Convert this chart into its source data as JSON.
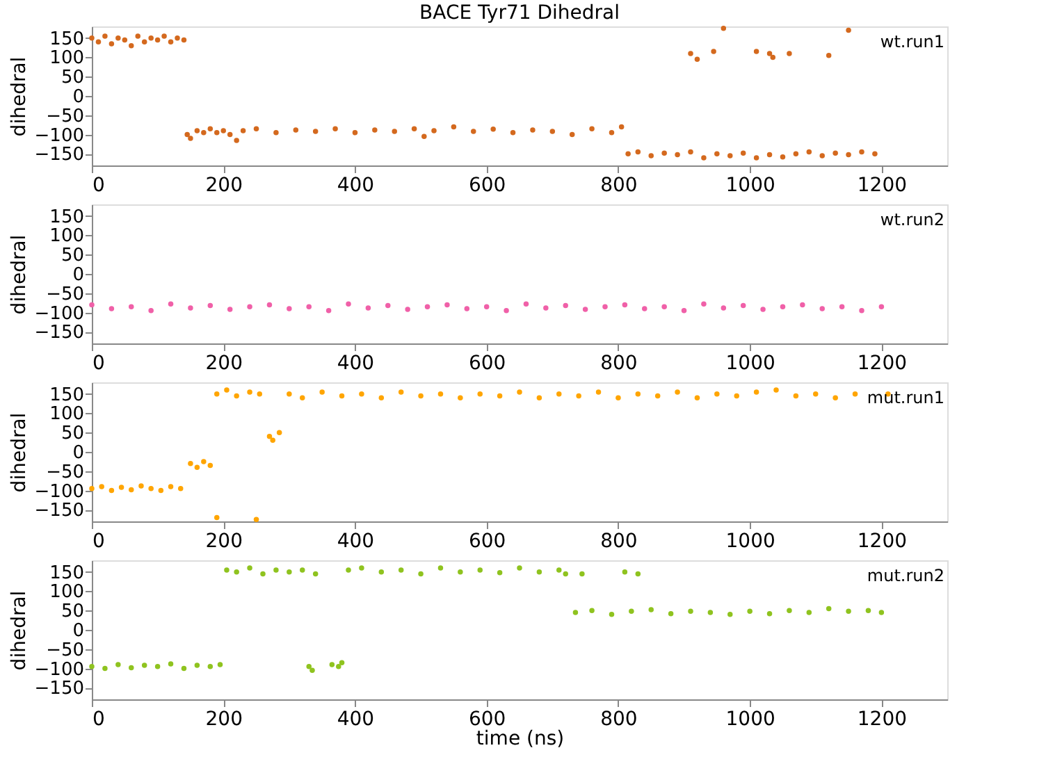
{
  "chart_data": [
    {
      "type": "scatter",
      "title": "BACE Tyr71 Dihedral",
      "ylabel": "dihedral",
      "annotations": [
        "wt.run1"
      ],
      "xlim": [
        0,
        1300
      ],
      "xticks": [
        0,
        200,
        400,
        600,
        800,
        1000,
        1200
      ],
      "ylim": [
        -180,
        180
      ],
      "yticks": [
        -150,
        -100,
        -50,
        0,
        50,
        100,
        150
      ],
      "grid": false,
      "marker": "circle",
      "series": [
        {
          "color": "#d4691e",
          "x": [
            0,
            10,
            20,
            30,
            40,
            50,
            60,
            70,
            80,
            90,
            100,
            110,
            120,
            130,
            140,
            145,
            150,
            160,
            170,
            180,
            190,
            200,
            210,
            220,
            230,
            250,
            280,
            310,
            340,
            370,
            400,
            430,
            460,
            490,
            505,
            520,
            550,
            580,
            610,
            640,
            670,
            700,
            730,
            760,
            790,
            805,
            815,
            830,
            850,
            870,
            890,
            910,
            930,
            950,
            970,
            990,
            1010,
            1030,
            1050,
            1070,
            1090,
            1110,
            1130,
            1150,
            1170,
            1190,
            910,
            920,
            945,
            1010,
            1030,
            1035,
            1060,
            1120,
            960,
            1150
          ],
          "values": [
            150,
            140,
            155,
            135,
            150,
            145,
            130,
            155,
            140,
            150,
            145,
            155,
            140,
            150,
            145,
            -100,
            -110,
            -90,
            -95,
            -85,
            -95,
            -90,
            -100,
            -115,
            -90,
            -85,
            -95,
            -88,
            -92,
            -85,
            -95,
            -88,
            -92,
            -85,
            -105,
            -90,
            -80,
            -92,
            -86,
            -95,
            -88,
            -92,
            -100,
            -85,
            -95,
            -80,
            -150,
            -145,
            -155,
            -148,
            -152,
            -145,
            -160,
            -150,
            -155,
            -148,
            -160,
            -152,
            -158,
            -150,
            -145,
            -155,
            -148,
            -152,
            -145,
            -150,
            110,
            95,
            115,
            115,
            110,
            100,
            110,
            105,
            175,
            170
          ]
        }
      ]
    },
    {
      "type": "scatter",
      "ylabel": "dihedral",
      "annotations": [
        "wt.run2"
      ],
      "xlim": [
        0,
        1300
      ],
      "xticks": [
        0,
        200,
        400,
        600,
        800,
        1000,
        1200
      ],
      "ylim": [
        -180,
        180
      ],
      "yticks": [
        -150,
        -100,
        -50,
        0,
        50,
        100,
        150
      ],
      "grid": false,
      "marker": "circle",
      "series": [
        {
          "color": "#f060a8",
          "x": [
            0,
            30,
            60,
            90,
            120,
            150,
            180,
            210,
            240,
            270,
            300,
            330,
            360,
            390,
            420,
            450,
            480,
            510,
            540,
            570,
            600,
            630,
            660,
            690,
            720,
            750,
            780,
            810,
            840,
            870,
            900,
            930,
            960,
            990,
            1020,
            1050,
            1080,
            1110,
            1140,
            1170,
            1200
          ],
          "values": [
            -80,
            -90,
            -85,
            -95,
            -78,
            -88,
            -82,
            -92,
            -85,
            -80,
            -90,
            -85,
            -95,
            -78,
            -88,
            -82,
            -92,
            -85,
            -80,
            -90,
            -85,
            -95,
            -78,
            -88,
            -82,
            -92,
            -85,
            -80,
            -90,
            -85,
            -95,
            -78,
            -88,
            -82,
            -92,
            -85,
            -80,
            -90,
            -85,
            -95,
            -85
          ]
        }
      ]
    },
    {
      "type": "scatter",
      "ylabel": "dihedral",
      "annotations": [
        "mut.run1"
      ],
      "xlim": [
        0,
        1300
      ],
      "xticks": [
        0,
        200,
        400,
        600,
        800,
        1000,
        1200
      ],
      "ylim": [
        -180,
        180
      ],
      "yticks": [
        -150,
        -100,
        -50,
        0,
        50,
        100,
        150
      ],
      "grid": false,
      "marker": "circle",
      "series": [
        {
          "color": "#ffa500",
          "x": [
            0,
            15,
            30,
            45,
            60,
            75,
            90,
            105,
            120,
            135,
            150,
            160,
            170,
            180,
            190,
            205,
            220,
            240,
            255,
            270,
            275,
            285,
            250,
            190,
            300,
            320,
            350,
            380,
            410,
            440,
            470,
            500,
            530,
            560,
            590,
            620,
            650,
            680,
            710,
            740,
            770,
            800,
            830,
            860,
            890,
            920,
            950,
            980,
            1010,
            1040,
            1070,
            1100,
            1130,
            1160,
            1190,
            1210
          ],
          "values": [
            -95,
            -90,
            -100,
            -92,
            -98,
            -88,
            -95,
            -100,
            -90,
            -95,
            -30,
            -40,
            -25,
            -35,
            150,
            160,
            145,
            155,
            150,
            40,
            30,
            50,
            -175,
            -170,
            150,
            140,
            155,
            145,
            150,
            140,
            155,
            145,
            150,
            140,
            150,
            145,
            155,
            140,
            150,
            145,
            155,
            140,
            150,
            145,
            155,
            140,
            150,
            145,
            155,
            160,
            145,
            150,
            140,
            150,
            null,
            150
          ]
        }
      ]
    },
    {
      "type": "scatter",
      "ylabel": "dihedral",
      "xlabel": "time (ns)",
      "annotations": [
        "mut.run2"
      ],
      "xlim": [
        0,
        1300
      ],
      "xticks": [
        0,
        200,
        400,
        600,
        800,
        1000,
        1200
      ],
      "ylim": [
        -180,
        180
      ],
      "yticks": [
        -150,
        -100,
        -50,
        0,
        50,
        100,
        150
      ],
      "grid": false,
      "marker": "circle",
      "series": [
        {
          "color": "#8fc31f",
          "x": [
            0,
            20,
            40,
            60,
            80,
            100,
            120,
            140,
            160,
            180,
            195,
            205,
            220,
            240,
            260,
            280,
            300,
            320,
            340,
            330,
            335,
            365,
            375,
            380,
            390,
            410,
            440,
            470,
            500,
            530,
            560,
            590,
            620,
            650,
            680,
            710,
            720,
            745,
            810,
            830,
            735,
            760,
            790,
            820,
            850,
            880,
            910,
            940,
            970,
            1000,
            1030,
            1060,
            1090,
            1120,
            1150,
            1180,
            1200
          ],
          "values": [
            -95,
            -100,
            -90,
            -98,
            -92,
            -95,
            -88,
            -100,
            -92,
            -95,
            -90,
            155,
            150,
            160,
            145,
            155,
            150,
            155,
            145,
            -95,
            -105,
            -90,
            -95,
            -85,
            155,
            160,
            150,
            155,
            145,
            160,
            150,
            155,
            148,
            160,
            150,
            155,
            145,
            145,
            150,
            145,
            45,
            50,
            40,
            48,
            52,
            42,
            48,
            45,
            40,
            48,
            42,
            50,
            45,
            55,
            48,
            50,
            45
          ]
        }
      ]
    }
  ]
}
